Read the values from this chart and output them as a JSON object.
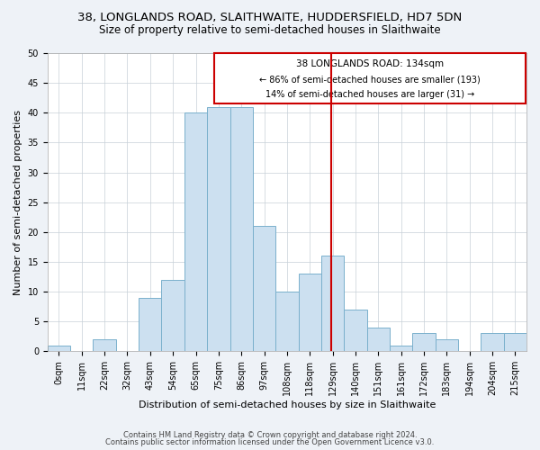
{
  "title": "38, LONGLANDS ROAD, SLAITHWAITE, HUDDERSFIELD, HD7 5DN",
  "subtitle": "Size of property relative to semi-detached houses in Slaithwaite",
  "xlabel": "Distribution of semi-detached houses by size in Slaithwaite",
  "ylabel": "Number of semi-detached properties",
  "footer_line1": "Contains HM Land Registry data © Crown copyright and database right 2024.",
  "footer_line2": "Contains public sector information licensed under the Open Government Licence v3.0.",
  "bin_labels": [
    "0sqm",
    "11sqm",
    "22sqm",
    "32sqm",
    "43sqm",
    "54sqm",
    "65sqm",
    "75sqm",
    "86sqm",
    "97sqm",
    "108sqm",
    "118sqm",
    "129sqm",
    "140sqm",
    "151sqm",
    "161sqm",
    "172sqm",
    "183sqm",
    "194sqm",
    "204sqm",
    "215sqm"
  ],
  "bar_values": [
    1,
    0,
    2,
    0,
    9,
    12,
    40,
    41,
    41,
    21,
    10,
    13,
    16,
    7,
    4,
    1,
    3,
    2,
    0,
    3,
    3
  ],
  "bar_color": "#cce0f0",
  "bar_edge_color": "#7ab0cc",
  "property_bin_index": 12,
  "annotation_text_line1": "38 LONGLANDS ROAD: 134sqm",
  "annotation_text_line2": "← 86% of semi-detached houses are smaller (193)",
  "annotation_text_line3": "14% of semi-detached houses are larger (31) →",
  "annotation_box_color": "#cc0000",
  "ylim": [
    0,
    50
  ],
  "yticks": [
    0,
    5,
    10,
    15,
    20,
    25,
    30,
    35,
    40,
    45,
    50
  ],
  "bg_color": "#eef2f7",
  "plot_bg_color": "#ffffff",
  "title_fontsize": 9.5,
  "subtitle_fontsize": 8.5,
  "axis_fontsize": 8,
  "tick_fontsize": 7,
  "footer_fontsize": 6
}
